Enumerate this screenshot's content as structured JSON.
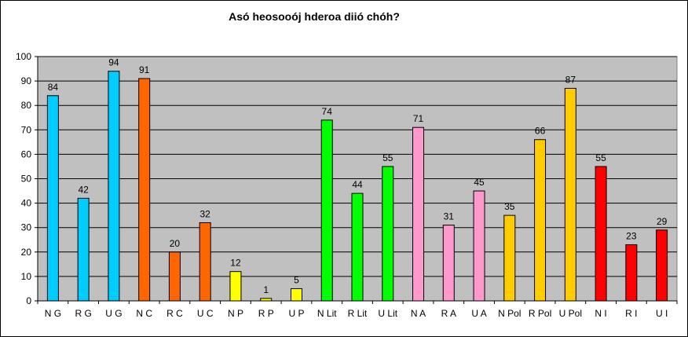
{
  "chart_data": {
    "type": "bar",
    "title": "Asó heosooój hderoa diió chóh?",
    "xlabel": "",
    "ylabel": "",
    "ylim": [
      0,
      100
    ],
    "yticks": [
      0,
      10,
      20,
      30,
      40,
      50,
      60,
      70,
      80,
      90,
      100
    ],
    "grid": true,
    "legend": "none",
    "plot_background": "#c0c0c0",
    "categories": [
      "N G",
      "R G",
      "U G",
      "N C",
      "R C",
      "U C",
      "N P",
      "R P",
      "U P",
      "N Lit",
      "R Lit",
      "U Lit",
      "N A",
      "R A",
      "U A",
      "N Pol",
      "R Pol",
      "U Pol",
      "N I",
      "R I",
      "U I"
    ],
    "values": [
      84,
      42,
      94,
      91,
      20,
      32,
      12,
      1,
      5,
      74,
      44,
      55,
      71,
      31,
      45,
      35,
      66,
      87,
      55,
      23,
      29
    ],
    "colors": [
      "#00ccff",
      "#00ccff",
      "#00ccff",
      "#ff6600",
      "#ff6600",
      "#ff6600",
      "#ffff00",
      "#ffff00",
      "#ffff00",
      "#00ff00",
      "#00ff00",
      "#00ff00",
      "#ff99cc",
      "#ff99cc",
      "#ff99cc",
      "#ffcc00",
      "#ffcc00",
      "#ffcc00",
      "#ff0000",
      "#ff0000",
      "#ff0000"
    ],
    "data_labels": true
  }
}
